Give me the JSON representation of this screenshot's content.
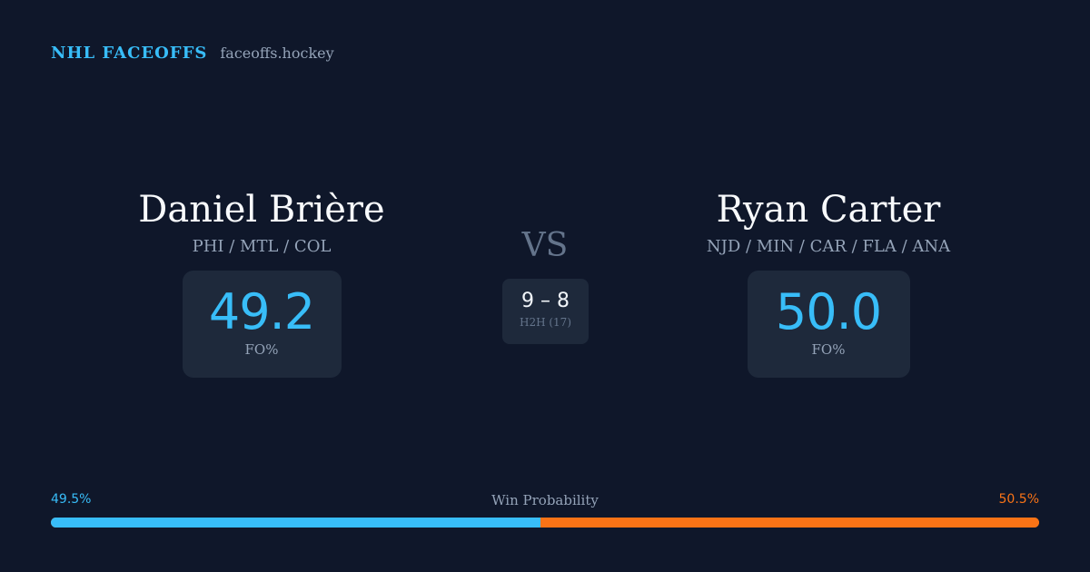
{
  "brand": {
    "title": "NHL FACEOFFS",
    "domain": "faceoffs.hockey"
  },
  "player_left": {
    "name": "Daniel Brière",
    "teams": "PHI / MTL / COL",
    "stat_value": "49.2",
    "stat_label": "FO%"
  },
  "player_right": {
    "name": "Ryan Carter",
    "teams": "NJD / MIN / CAR / FLA / ANA",
    "stat_value": "50.0",
    "stat_label": "FO%"
  },
  "versus": {
    "label": "VS",
    "h2h_score": "9 – 8",
    "h2h_label": "H2H (17)"
  },
  "win_probability": {
    "title": "Win Probability",
    "left_label": "49.5%",
    "right_label": "50.5%",
    "left_value": 49.5,
    "right_value": 50.5
  },
  "colors": {
    "background": "#0f172a",
    "card": "#1e293b",
    "accent_left": "#38bdf8",
    "accent_right": "#f97316",
    "muted_text": "#94a3b8"
  }
}
